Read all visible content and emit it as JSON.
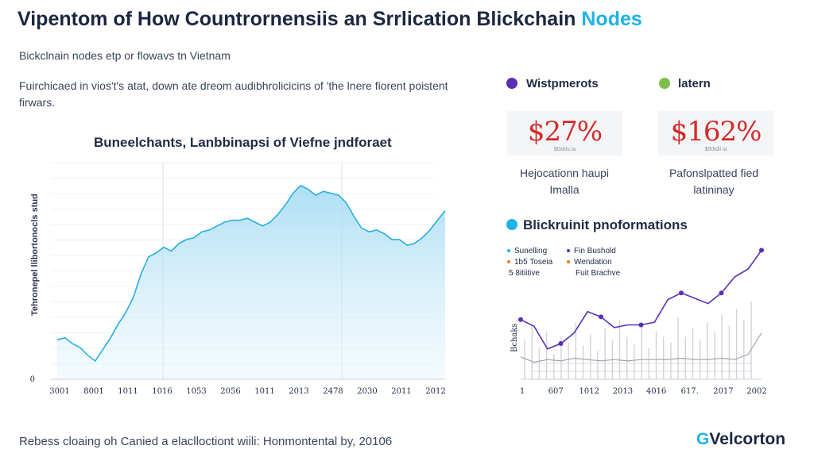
{
  "header": {
    "title_main": "Vipentom of How Countrornensiis an Srrlication Blickchain",
    "title_accent": "Nodes",
    "subtitle": "Bickclnain nodes etp or flowavs tn Vietnam",
    "description": "Fuirchicaed in vios't's atat, down ate dreom audibhrolicicins of 'the lnere fiorent poistent firwars."
  },
  "kpis": [
    {
      "name": "Wistpmerots",
      "value": "$27%",
      "small": "$0xtiis.ia",
      "label_line1": "Hejocationn haupi",
      "label_line2": "Imalla",
      "color": "#5a2fb4"
    },
    {
      "name": "latern",
      "value": "$162%",
      "small": "$00tdii ia",
      "label_line1": "Pafonslpatted fied",
      "label_line2": "latininay",
      "color": "#7bbf4a"
    }
  ],
  "right_section": {
    "title": "Blickruinit pnoformations",
    "dot_color": "#1fb3e6",
    "legend": [
      {
        "label": "Sunelling",
        "color": "#1fb3e6"
      },
      {
        "label": "Fin Bushold",
        "color": "#5a2fb4"
      },
      {
        "label": "1b5 Toseia",
        "color": "#e07a2a"
      },
      {
        "label": "Wendation",
        "color": "#e07a2a"
      },
      {
        "label": "5 8itiitive",
        "color": ""
      },
      {
        "label": "Fuit Brachve",
        "color": ""
      }
    ]
  },
  "footer": {
    "text": "Rebess cloaing oh Canied a elaclloctiont wiili: Honmontental by, 20106"
  },
  "logo": {
    "icon": "G",
    "text": "Velcorton"
  },
  "chart_data": [
    {
      "type": "area",
      "title": "Buneelchants, Lanbbinapsi of Viefne jndforaet",
      "ylabel": "Tehronepel llibortonocls stud",
      "xlabel": "",
      "x_tick_labels": [
        "3001",
        "8001",
        "1011",
        "1016",
        "1053",
        "2056",
        "1011",
        "2013",
        "2478",
        "2030",
        "2011",
        "2012"
      ],
      "y_tick_labels": [
        "0"
      ],
      "ylim": [
        0,
        100
      ],
      "grid": true,
      "color": "#29aee0",
      "values": [
        18,
        19,
        16,
        14,
        10,
        7,
        13,
        19,
        26,
        32,
        40,
        52,
        61,
        63,
        66,
        64,
        68,
        70,
        71,
        74,
        75,
        77,
        79,
        80,
        80,
        81,
        79,
        77,
        79,
        83,
        88,
        94,
        98,
        96,
        93,
        95,
        94,
        93,
        89,
        82,
        76,
        74,
        75,
        73,
        70,
        70,
        67,
        68,
        71,
        75,
        80,
        85
      ]
    },
    {
      "type": "line",
      "title": "Blickruinit pnoformations",
      "x_tick_labels": [
        "1",
        "607",
        "1012",
        "2013",
        "4016",
        "617.",
        "2017",
        "2002"
      ],
      "ylabel": "Bchaks",
      "ylim": [
        0,
        100
      ],
      "series": [
        {
          "name": "Fin Bushold",
          "color": "#5a2fb4",
          "values": [
            40,
            35,
            18,
            22,
            30,
            46,
            42,
            34,
            36,
            36,
            38,
            55,
            60,
            56,
            52,
            60,
            72,
            78,
            92
          ]
        },
        {
          "name": "Sunelling",
          "color": "#a0a4ab",
          "values": [
            12,
            8,
            10,
            9,
            11,
            10,
            9,
            10,
            9,
            10,
            10,
            10,
            11,
            10,
            10,
            11,
            10,
            14,
            30
          ]
        }
      ],
      "bars": [
        28,
        38,
        22,
        34,
        18,
        30,
        26,
        40,
        24,
        32,
        20,
        36,
        28,
        42,
        30,
        25,
        38,
        22,
        34,
        30,
        26,
        44,
        30,
        36,
        28,
        40,
        34,
        46,
        38,
        50,
        42,
        55
      ]
    }
  ]
}
